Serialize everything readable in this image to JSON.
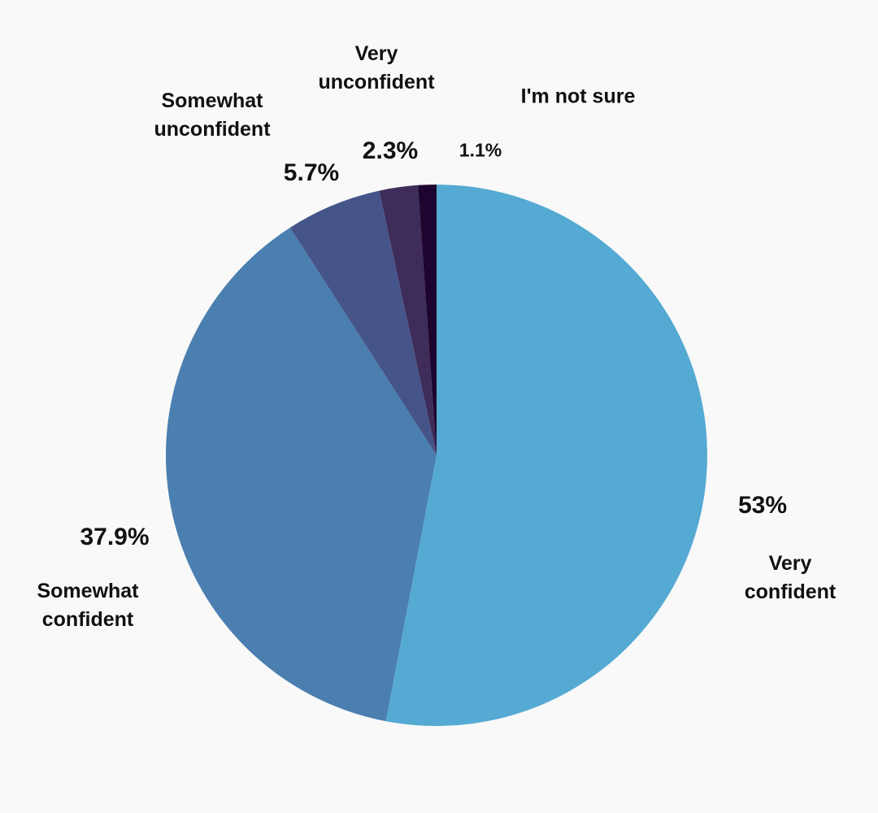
{
  "chart_data": {
    "type": "pie",
    "slices": [
      {
        "label": "Very confident",
        "label_lines": [
          "Very",
          "confident"
        ],
        "value": 53,
        "value_label": "53%",
        "color": "#55aad3"
      },
      {
        "label": "Somewhat confident",
        "label_lines": [
          "Somewhat",
          "confident"
        ],
        "value": 37.9,
        "value_label": "37.9%",
        "color": "#4a7fb0"
      },
      {
        "label": "Somewhat unconfident",
        "label_lines": [
          "Somewhat",
          "unconfident"
        ],
        "value": 5.7,
        "value_label": "5.7%",
        "color": "#455489"
      },
      {
        "label": "Very unconfident",
        "label_lines": [
          "Very",
          "unconfident"
        ],
        "value": 2.3,
        "value_label": "2.3%",
        "color": "#3e2c5b"
      },
      {
        "label": "I'm not sure",
        "label_lines": [
          "I'm not sure"
        ],
        "value": 1.1,
        "value_label": "1.1%",
        "color": "#1e0530"
      }
    ],
    "start": "12 o'clock",
    "direction": "clockwise"
  }
}
